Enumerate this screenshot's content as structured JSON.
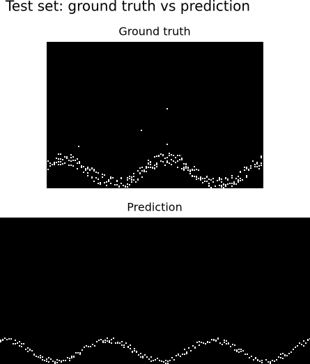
{
  "title": "Test set: ground truth vs prediction",
  "panels": [
    {
      "title": "Ground truth"
    },
    {
      "title": "Prediction"
    }
  ]
}
